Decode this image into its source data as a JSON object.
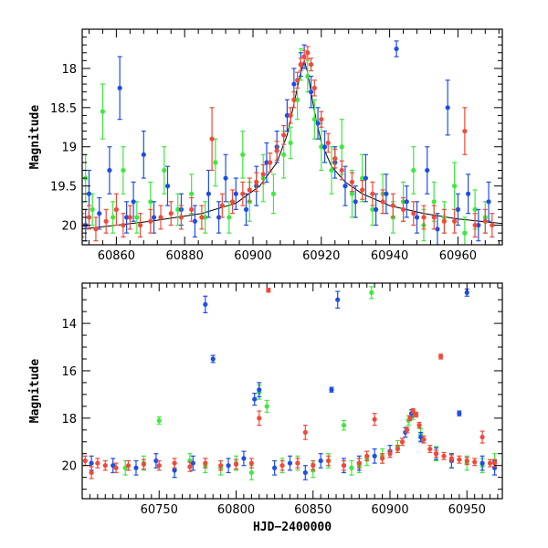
{
  "chart_data": [
    {
      "type": "scatter",
      "title": "",
      "xlabel": "",
      "ylabel": "Magnitude",
      "xlim": [
        60850,
        60973
      ],
      "ylim": [
        20.25,
        17.5
      ],
      "y_inverted": true,
      "x_ticks_major": [
        60860,
        60880,
        60900,
        60920,
        60940,
        60960
      ],
      "x_tick_labels": [
        "60860",
        "60880",
        "60900",
        "60920",
        "60940",
        "60960"
      ],
      "y_ticks_major": [
        18,
        18.5,
        19,
        19.5,
        20
      ],
      "y_tick_labels": [
        "18",
        "18.5",
        "19",
        "19.5",
        "20"
      ],
      "model_curve": {
        "name": "model",
        "color": "#000000",
        "x": [
          60850,
          60870,
          60885,
          60895,
          60902,
          60907,
          60910,
          60912,
          60914,
          60915,
          60916,
          60918,
          60920,
          60923,
          60927,
          60932,
          60940,
          60950,
          60960,
          60973
        ],
        "y": [
          20.05,
          19.95,
          19.85,
          19.72,
          19.5,
          19.2,
          18.85,
          18.45,
          18.05,
          17.9,
          18.05,
          18.55,
          18.95,
          19.25,
          19.45,
          19.6,
          19.75,
          19.85,
          19.92,
          19.98
        ]
      },
      "series": [
        {
          "name": "green",
          "color": "#3ee83e",
          "x": [
            60851,
            60853,
            60856,
            60859,
            60862,
            60866,
            60870,
            60874,
            60878,
            60882,
            60886,
            60889,
            60893,
            60897,
            60899,
            60903,
            60906,
            60909,
            60911,
            60913,
            60914,
            60916,
            60918,
            60920,
            60923,
            60926,
            60929,
            60932,
            60935,
            60938,
            60941,
            60944,
            60947,
            60950,
            60953,
            60956,
            60959,
            60962,
            60965,
            60968
          ],
          "y": [
            19.4,
            19.8,
            18.55,
            19.9,
            19.3,
            19.9,
            19.7,
            19.3,
            19.8,
            19.6,
            19.9,
            19.2,
            19.9,
            19.1,
            19.7,
            19.4,
            19.6,
            19.1,
            18.95,
            18.4,
            17.95,
            18.1,
            18.65,
            19.0,
            19.3,
            19.0,
            19.6,
            19.4,
            19.8,
            19.6,
            19.9,
            19.7,
            19.3,
            20.0,
            19.7,
            19.9,
            19.5,
            20.1,
            19.8,
            19.9
          ],
          "err": [
            0.3,
            0.2,
            0.35,
            0.2,
            0.3,
            0.2,
            0.25,
            0.3,
            0.2,
            0.25,
            0.2,
            0.3,
            0.2,
            0.3,
            0.25,
            0.3,
            0.25,
            0.3,
            0.2,
            0.25,
            0.2,
            0.2,
            0.25,
            0.3,
            0.3,
            0.35,
            0.3,
            0.3,
            0.2,
            0.25,
            0.2,
            0.25,
            0.3,
            0.2,
            0.25,
            0.2,
            0.3,
            0.2,
            0.25,
            0.2
          ]
        },
        {
          "name": "blue",
          "color": "#1e4ee6",
          "x": [
            60851,
            60852,
            60855,
            60858,
            60861,
            60863,
            60865,
            60868,
            60871,
            60875,
            60879,
            60883,
            60887,
            60890,
            60892,
            60895,
            60898,
            60901,
            60904,
            60907,
            60910,
            60912,
            60914,
            60915,
            60917,
            60919,
            60921,
            60924,
            60927,
            60930,
            60933,
            60936,
            60939,
            60942,
            60945,
            60948,
            60951,
            60954,
            60957,
            60960,
            60963,
            60966,
            60969
          ],
          "y": [
            20.0,
            19.6,
            19.85,
            19.3,
            18.25,
            19.9,
            19.7,
            19.1,
            19.9,
            19.5,
            19.8,
            19.95,
            19.6,
            19.9,
            19.4,
            19.6,
            19.8,
            19.5,
            19.2,
            19.0,
            18.6,
            18.2,
            17.95,
            17.85,
            18.3,
            18.7,
            19.0,
            19.2,
            19.5,
            19.7,
            19.4,
            19.8,
            19.6,
            17.75,
            19.7,
            19.9,
            19.3,
            20.05,
            18.5,
            19.8,
            19.6,
            20.0,
            19.7
          ],
          "err": [
            0.2,
            0.3,
            0.2,
            0.3,
            0.4,
            0.2,
            0.25,
            0.3,
            0.2,
            0.25,
            0.2,
            0.2,
            0.3,
            0.2,
            0.3,
            0.2,
            0.2,
            0.25,
            0.25,
            0.2,
            0.2,
            0.2,
            0.15,
            0.15,
            0.2,
            0.2,
            0.2,
            0.2,
            0.25,
            0.2,
            0.3,
            0.2,
            0.25,
            0.1,
            0.2,
            0.2,
            0.3,
            0.2,
            0.35,
            0.2,
            0.25,
            0.2,
            0.25
          ]
        },
        {
          "name": "red",
          "color": "#f04a3a",
          "x": [
            60850,
            60852,
            60854,
            60857,
            60860,
            60862,
            60864,
            60867,
            60870,
            60873,
            60876,
            60879,
            60882,
            60885,
            60888,
            60891,
            60894,
            60897,
            60899,
            60901,
            60903,
            60905,
            60907,
            60909,
            60911,
            60912,
            60913,
            60914,
            60915,
            60916,
            60917,
            60918,
            60920,
            60922,
            60924,
            60926,
            60929,
            60932,
            60935,
            60938,
            60941,
            60944,
            60947,
            60950,
            60953,
            60956,
            60959,
            60962,
            60965,
            60968,
            60970
          ],
          "y": [
            20.0,
            19.9,
            20.05,
            19.95,
            19.8,
            20.0,
            19.9,
            20.0,
            19.95,
            19.9,
            19.85,
            19.9,
            19.8,
            19.9,
            18.9,
            19.75,
            19.7,
            19.6,
            19.55,
            19.45,
            19.35,
            19.2,
            19.05,
            18.85,
            18.6,
            18.4,
            18.15,
            17.95,
            17.85,
            17.8,
            17.95,
            18.25,
            18.65,
            18.95,
            19.15,
            19.3,
            19.45,
            19.55,
            19.6,
            19.7,
            19.75,
            19.8,
            19.85,
            19.9,
            19.9,
            19.95,
            19.95,
            18.8,
            20.0,
            19.95,
            20.0
          ],
          "err": [
            0.15,
            0.15,
            0.15,
            0.15,
            0.2,
            0.15,
            0.15,
            0.15,
            0.15,
            0.15,
            0.15,
            0.15,
            0.15,
            0.15,
            0.4,
            0.15,
            0.15,
            0.15,
            0.15,
            0.12,
            0.12,
            0.12,
            0.12,
            0.12,
            0.1,
            0.1,
            0.1,
            0.08,
            0.08,
            0.08,
            0.08,
            0.1,
            0.1,
            0.12,
            0.12,
            0.12,
            0.12,
            0.12,
            0.15,
            0.15,
            0.15,
            0.15,
            0.15,
            0.15,
            0.15,
            0.15,
            0.15,
            0.3,
            0.15,
            0.15,
            0.15
          ]
        }
      ]
    },
    {
      "type": "scatter",
      "title": "",
      "xlabel": "HJD−2400000",
      "ylabel": "Magnitude",
      "xlim": [
        60700,
        60973
      ],
      "ylim": [
        21.4,
        12.3
      ],
      "y_inverted": true,
      "x_ticks_major": [
        60750,
        60800,
        60850,
        60900,
        60950
      ],
      "x_tick_labels": [
        "60750",
        "60800",
        "60850",
        "60900",
        "60950"
      ],
      "y_ticks_major": [
        14,
        16,
        18,
        20
      ],
      "y_tick_labels": [
        "14",
        "16",
        "18",
        "20"
      ],
      "series": [
        {
          "name": "green",
          "color": "#3ee83e",
          "x": [
            60728,
            60740,
            60750,
            60760,
            60770,
            60780,
            60790,
            60800,
            60810,
            60815,
            60820,
            60830,
            60840,
            60850,
            60860,
            60870,
            60875,
            60880,
            60885,
            60888,
            60895,
            60905,
            60912,
            60915,
            60920,
            60930,
            60940,
            60950,
            60960,
            60968
          ],
          "y": [
            20.1,
            19.9,
            18.1,
            20.2,
            19.8,
            20.0,
            20.1,
            19.9,
            20.3,
            16.9,
            17.5,
            20.0,
            19.9,
            20.2,
            19.8,
            18.3,
            20.1,
            20.0,
            19.7,
            12.7,
            19.6,
            19.2,
            18.1,
            17.85,
            18.7,
            19.5,
            19.8,
            19.9,
            20.0,
            19.8
          ],
          "err": [
            0.3,
            0.3,
            0.15,
            0.3,
            0.3,
            0.3,
            0.3,
            0.3,
            0.3,
            0.3,
            0.25,
            0.3,
            0.3,
            0.3,
            0.3,
            0.2,
            0.3,
            0.3,
            0.3,
            0.25,
            0.3,
            0.25,
            0.2,
            0.2,
            0.25,
            0.3,
            0.3,
            0.3,
            0.3,
            0.3
          ]
        },
        {
          "name": "blue",
          "color": "#1e4ee6",
          "x": [
            60706,
            60720,
            60735,
            60748,
            60760,
            60772,
            60780,
            60785,
            60795,
            60805,
            60812,
            60815,
            60825,
            60835,
            60845,
            60855,
            60862,
            60866,
            60870,
            60880,
            60890,
            60900,
            60910,
            60914,
            60920,
            60930,
            60940,
            60945,
            60950,
            60960,
            60968
          ],
          "y": [
            19.9,
            20.0,
            20.1,
            19.8,
            20.2,
            19.9,
            13.2,
            15.5,
            20.0,
            19.7,
            17.2,
            16.8,
            20.1,
            19.9,
            20.3,
            19.8,
            16.8,
            13.0,
            20.0,
            19.9,
            19.6,
            19.4,
            18.6,
            17.8,
            18.8,
            19.5,
            19.8,
            17.8,
            12.7,
            19.9,
            20.1
          ],
          "err": [
            0.3,
            0.3,
            0.3,
            0.3,
            0.3,
            0.3,
            0.35,
            0.15,
            0.3,
            0.3,
            0.25,
            0.3,
            0.3,
            0.3,
            0.3,
            0.3,
            0.1,
            0.35,
            0.3,
            0.3,
            0.3,
            0.25,
            0.2,
            0.15,
            0.2,
            0.25,
            0.3,
            0.1,
            0.15,
            0.3,
            0.3
          ]
        },
        {
          "name": "red",
          "color": "#f04a3a",
          "x": [
            60702,
            60706,
            60710,
            60715,
            60722,
            60730,
            60740,
            60750,
            60760,
            60770,
            60780,
            60790,
            60800,
            60810,
            60815,
            60821,
            60830,
            60840,
            60845,
            60850,
            60860,
            60870,
            60880,
            60885,
            60890,
            60895,
            60900,
            60905,
            60908,
            60911,
            60913,
            60915,
            60917,
            60919,
            60922,
            60926,
            60930,
            60933,
            60935,
            60940,
            60945,
            60950,
            60955,
            60960,
            60965,
            60968
          ],
          "y": [
            19.8,
            20.3,
            19.9,
            20.0,
            20.1,
            20.0,
            19.95,
            20.0,
            19.9,
            20.05,
            19.9,
            20.0,
            19.95,
            19.9,
            18.0,
            12.6,
            20.0,
            19.9,
            18.6,
            20.0,
            19.8,
            20.0,
            19.9,
            19.6,
            18.05,
            19.7,
            19.5,
            19.3,
            19.0,
            18.5,
            18.0,
            17.7,
            17.85,
            18.3,
            18.9,
            19.3,
            19.5,
            15.4,
            19.6,
            19.7,
            19.75,
            19.8,
            19.85,
            18.8,
            19.9,
            19.9
          ],
          "err": [
            0.2,
            0.25,
            0.2,
            0.2,
            0.2,
            0.2,
            0.2,
            0.2,
            0.2,
            0.2,
            0.2,
            0.2,
            0.2,
            0.2,
            0.3,
            0.08,
            0.2,
            0.2,
            0.3,
            0.2,
            0.2,
            0.2,
            0.2,
            0.2,
            0.25,
            0.2,
            0.15,
            0.15,
            0.15,
            0.12,
            0.1,
            0.1,
            0.1,
            0.12,
            0.15,
            0.15,
            0.15,
            0.1,
            0.15,
            0.15,
            0.15,
            0.15,
            0.15,
            0.25,
            0.15,
            0.15
          ]
        }
      ]
    }
  ]
}
